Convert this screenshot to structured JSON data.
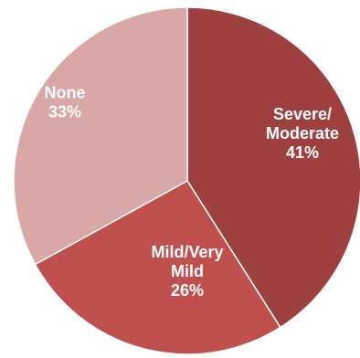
{
  "chart_data": {
    "type": "pie",
    "slices": [
      {
        "label_lines": [
          "Severe/",
          "Moderate"
        ],
        "value_label": "41%",
        "value": 41,
        "color": "#9E4040"
      },
      {
        "label_lines": [
          "Mild/Very",
          "Mild"
        ],
        "value_label": "26%",
        "value": 26,
        "color": "#C0504D"
      },
      {
        "label_lines": [
          "None"
        ],
        "value_label": "33%",
        "value": 33,
        "color": "#D9A8A6"
      }
    ]
  }
}
